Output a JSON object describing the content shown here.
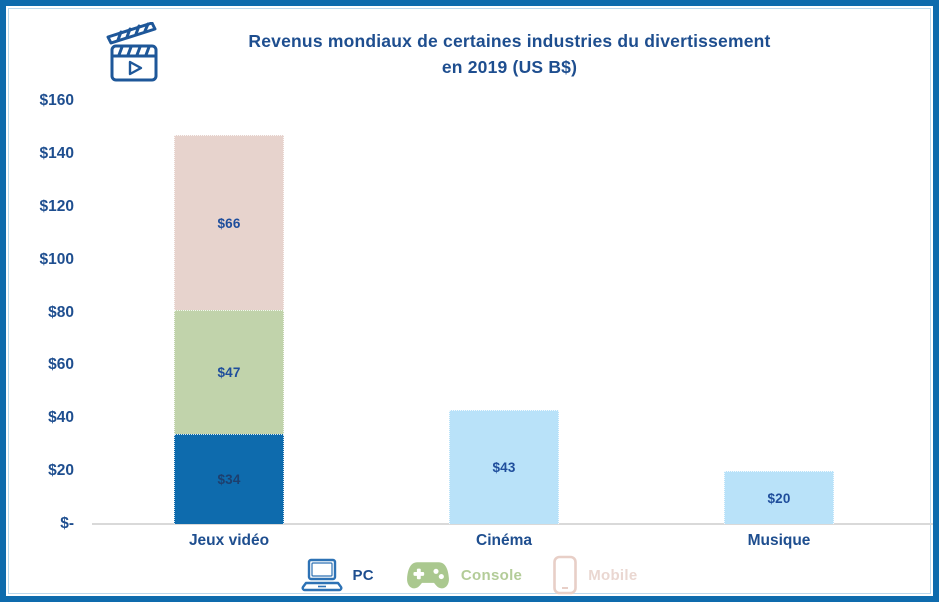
{
  "title": {
    "line1": "Revenus mondiaux de certaines industries du divertissement",
    "line2": "en 2019 (US B$)",
    "icon": "clapperboard-icon",
    "color": "#1e4e8f"
  },
  "colors": {
    "frame_border": "#0e6bad",
    "text_navy": "#1e4e8f",
    "axis_line": "#d9d9d9"
  },
  "chart_data": {
    "type": "bar",
    "stacked": true,
    "title": "Revenus mondiaux de certaines industries du divertissement en 2019 (US B$)",
    "xlabel": "",
    "ylabel": "",
    "ylim": [
      0,
      160
    ],
    "grid": false,
    "legend_position": "bottom",
    "categories": [
      "Jeux vidéo",
      "Cinéma",
      "Musique"
    ],
    "yticks": [
      {
        "label": "$160",
        "value": 160
      },
      {
        "label": "$140",
        "value": 140
      },
      {
        "label": "$120",
        "value": 120
      },
      {
        "label": "$100",
        "value": 100
      },
      {
        "label": "$80",
        "value": 80
      },
      {
        "label": "$60",
        "value": 60
      },
      {
        "label": "$40",
        "value": 40
      },
      {
        "label": "$20",
        "value": 20
      },
      {
        "label": "$-",
        "value": 0
      }
    ],
    "bars": [
      {
        "category": "Jeux vidéo",
        "segments": [
          {
            "name": "PC",
            "value": 34,
            "label": "$34",
            "color": "#0e6bad",
            "label_color": "#1d3f6e"
          },
          {
            "name": "Console",
            "value": 47,
            "label": "$47",
            "color": "#c1d3ab",
            "label_color": "#1f4e9c"
          },
          {
            "name": "Mobile",
            "value": 66,
            "label": "$66",
            "color": "#e7d3cd",
            "label_color": "#1f4e9c"
          }
        ]
      },
      {
        "category": "Cinéma",
        "segments": [
          {
            "name": "Cinéma",
            "value": 43,
            "label": "$43",
            "color": "#b9e2f9",
            "label_color": "#1f4e9c"
          }
        ]
      },
      {
        "category": "Musique",
        "segments": [
          {
            "name": "Musique",
            "value": 20,
            "label": "$20",
            "color": "#b9e2f9",
            "label_color": "#1f4e9c"
          }
        ]
      }
    ]
  },
  "legend": {
    "items": [
      {
        "icon": "laptop-icon",
        "label": "PC",
        "color": "#1e4e8f"
      },
      {
        "icon": "gamepad-icon",
        "label": "Console",
        "color": "#b3cc98"
      },
      {
        "icon": "smartphone-icon",
        "label": "Mobile",
        "color": "#ead7d1"
      }
    ]
  }
}
